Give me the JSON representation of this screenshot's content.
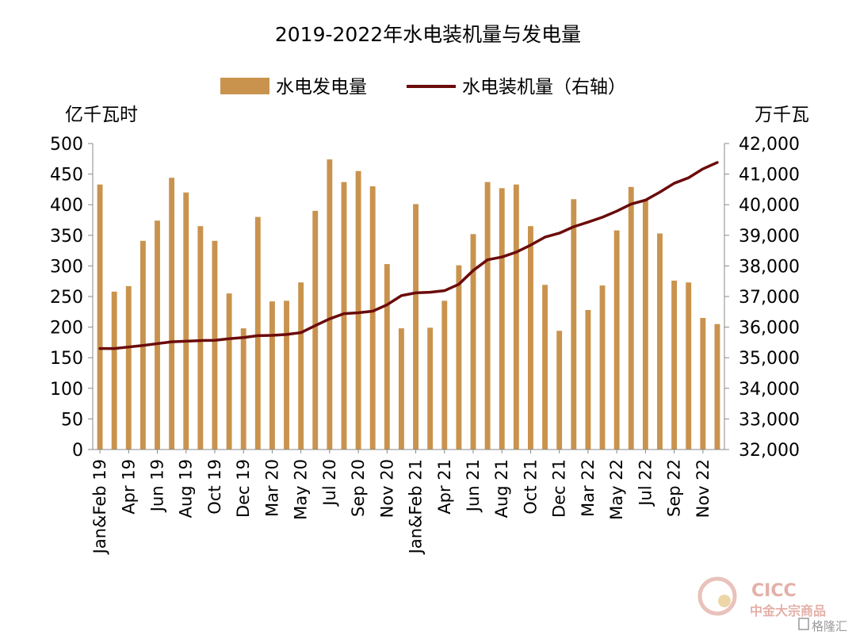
{
  "chart_data": {
    "type": "bar+line",
    "title": "2019-2022年水电装机量与发电量",
    "left_unit": "亿千瓦时",
    "right_unit": "万千瓦",
    "colors": {
      "bar": "#c9934e",
      "line": "#6b0b0b",
      "axis": "#888888"
    },
    "y_left": {
      "min": 0,
      "max": 500,
      "ticks": [
        "500",
        "450",
        "400",
        "350",
        "300",
        "250",
        "200",
        "150",
        "100",
        "50",
        "0"
      ]
    },
    "y_right": {
      "min": 32000,
      "max": 42000,
      "ticks": [
        "42,000",
        "41,000",
        "40,000",
        "39,000",
        "38,000",
        "37,000",
        "36,000",
        "35,000",
        "34,000",
        "33,000",
        "32,000"
      ]
    },
    "categories": [
      "Jan&Feb 19",
      "Mar 19",
      "Apr 19",
      "May 19",
      "Jun 19",
      "Jul 19",
      "Aug 19",
      "Sep 19",
      "Oct 19",
      "Nov 19",
      "Dec 19",
      "Jan&Feb 20",
      "Mar 20",
      "Apr 20",
      "May 20",
      "Jun 20",
      "Jul 20",
      "Aug 20",
      "Sep 20",
      "Oct 20",
      "Nov 20",
      "Dec 20",
      "Jan&Feb 21",
      "Mar 21",
      "Apr 21",
      "May 21",
      "Jun 21",
      "Jul 21",
      "Aug 21",
      "Sep 21",
      "Oct 21",
      "Nov 21",
      "Dec 21",
      "Jan&Feb 22",
      "Mar 22",
      "Apr 22",
      "May 22",
      "Jun 22",
      "Jul 22",
      "Aug 22",
      "Sep 22",
      "Oct 22",
      "Nov 22",
      "Dec 22"
    ],
    "tick_labels": [
      {
        "index": 0,
        "label": "Jan&Feb 19"
      },
      {
        "index": 2,
        "label": "Apr 19"
      },
      {
        "index": 4,
        "label": "Jun 19"
      },
      {
        "index": 6,
        "label": "Aug 19"
      },
      {
        "index": 8,
        "label": "Oct 19"
      },
      {
        "index": 10,
        "label": "Dec 19"
      },
      {
        "index": 12,
        "label": "Mar 20"
      },
      {
        "index": 14,
        "label": "May 20"
      },
      {
        "index": 16,
        "label": "Jul 20"
      },
      {
        "index": 18,
        "label": "Sep 20"
      },
      {
        "index": 20,
        "label": "Nov 20"
      },
      {
        "index": 22,
        "label": "Jan&Feb 21"
      },
      {
        "index": 24,
        "label": "Apr 21"
      },
      {
        "index": 26,
        "label": "Jun 21"
      },
      {
        "index": 28,
        "label": "Aug 21"
      },
      {
        "index": 30,
        "label": "Oct 21"
      },
      {
        "index": 32,
        "label": "Dec 21"
      },
      {
        "index": 34,
        "label": "Mar 22"
      },
      {
        "index": 36,
        "label": "May 22"
      },
      {
        "index": 38,
        "label": "Jul 22"
      },
      {
        "index": 40,
        "label": "Sep 22"
      },
      {
        "index": 42,
        "label": "Nov 22"
      }
    ],
    "series": [
      {
        "name": "水电发电量",
        "type": "bar",
        "axis": "left",
        "values": [
          433,
          258,
          267,
          341,
          374,
          444,
          420,
          365,
          341,
          255,
          198,
          380,
          242,
          243,
          273,
          390,
          474,
          437,
          455,
          430,
          303,
          198,
          401,
          199,
          243,
          301,
          352,
          437,
          427,
          433,
          365,
          269,
          194,
          409,
          228,
          268,
          358,
          429,
          409,
          353,
          276,
          273,
          215,
          205
        ]
      },
      {
        "name": "水电装机量（右轴）",
        "type": "line",
        "axis": "right",
        "values": [
          35300,
          35300,
          35350,
          35400,
          35460,
          35520,
          35540,
          35560,
          35570,
          35620,
          35660,
          35720,
          35730,
          35760,
          35820,
          36050,
          36270,
          36440,
          36470,
          36520,
          36730,
          37030,
          37120,
          37140,
          37190,
          37400,
          37850,
          38200,
          38290,
          38450,
          38680,
          38940,
          39070,
          39280,
          39430,
          39590,
          39790,
          40020,
          40150,
          40410,
          40700,
          40880,
          41170,
          41380
        ]
      }
    ]
  },
  "watermark": {
    "brand": "CICC",
    "brand_cn": "中金大宗商品",
    "source_mark": "格隆汇"
  }
}
